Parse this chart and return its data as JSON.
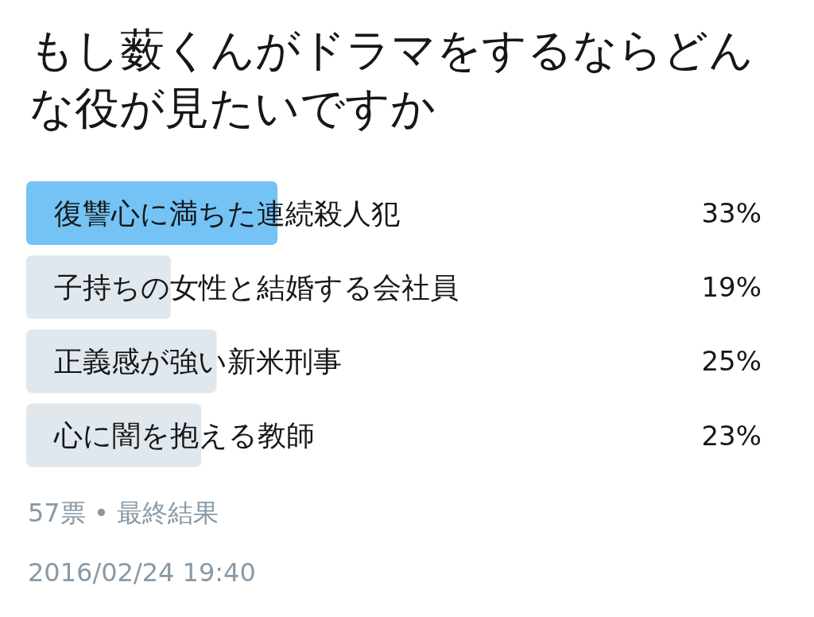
{
  "chart_data": {
    "type": "bar",
    "orientation": "horizontal",
    "title": "もし薮くんがドラマをするならどんな役が見たいですか",
    "categories": [
      "復讐心に満ちた連続殺人犯",
      "子持ちの女性と結婚する会社員",
      "正義感が強い新米刑事",
      "心に闇を抱える教師"
    ],
    "values": [
      33,
      19,
      25,
      23
    ],
    "colors": [
      "#75c3f5",
      "#e1e8ed",
      "#e1e8ed",
      "#e1e8ed"
    ],
    "value_labels": [
      "33%",
      "19%",
      "25%",
      "23%"
    ],
    "annotations": [
      "57票 • 最終結果",
      "2016/02/24 19:40"
    ]
  }
}
